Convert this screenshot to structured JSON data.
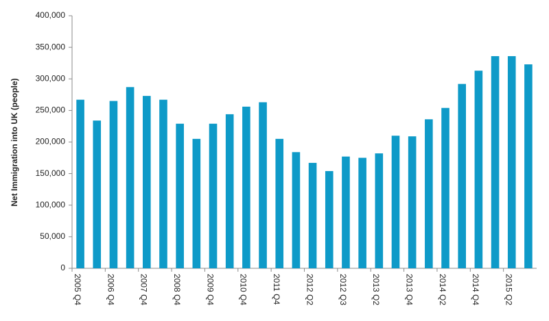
{
  "chart_data": {
    "type": "bar",
    "y_axis_label": "Net Immigration into UK  (people)",
    "categories": [
      "2005 Q4",
      null,
      "2006 Q4",
      null,
      "2007 Q4",
      null,
      "2008 Q4",
      null,
      "2009 Q4",
      null,
      "2010 Q4",
      null,
      "2011 Q4",
      null,
      "2012 Q2",
      null,
      "2012 Q3",
      null,
      "2013 Q2",
      null,
      "2013 Q4",
      null,
      "2014 Q2",
      null,
      "2014 Q4",
      null,
      "2015 Q2",
      null
    ],
    "values": [
      267000,
      234000,
      265000,
      287000,
      273000,
      267000,
      229000,
      205000,
      229000,
      244000,
      256000,
      263000,
      205000,
      184000,
      167000,
      154000,
      177000,
      175000,
      182000,
      210000,
      209000,
      236000,
      254000,
      292000,
      313000,
      336000,
      336000,
      323000
    ],
    "color": "#0e9ac8",
    "ylim": [
      0,
      400000
    ],
    "yticks": [
      0,
      {
        "value": 50000,
        "label": "50,000"
      },
      {
        "value": 100000,
        "label": "100,000"
      },
      {
        "value": 150000,
        "label": "150,000"
      },
      {
        "value": 200000,
        "label": "200,000"
      },
      {
        "value": 250000,
        "label": "250,000"
      },
      {
        "value": 300000,
        "label": "300,000"
      },
      {
        "value": 350000,
        "label": "350,000"
      },
      {
        "value": 400000,
        "label": "400,000"
      }
    ],
    "grid": false
  }
}
